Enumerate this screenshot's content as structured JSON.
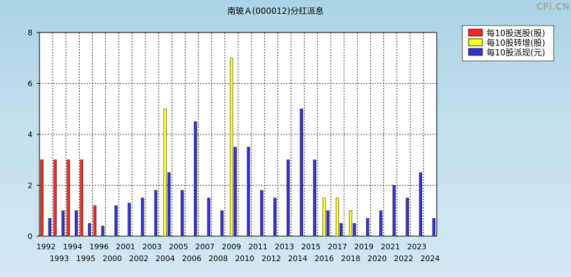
{
  "chart_data": {
    "type": "bar",
    "title": "南玻Ａ(000012)分红派息",
    "brand": "CFi.CN",
    "categories": [
      "1992",
      "1993",
      "1994",
      "1995",
      "1996",
      "2000",
      "2001",
      "2002",
      "2003",
      "2004",
      "2005",
      "2006",
      "2007",
      "2008",
      "2009",
      "2010",
      "2011",
      "2012",
      "2013",
      "2014",
      "2015",
      "2016",
      "2017",
      "2018",
      "2019",
      "2020",
      "2021",
      "2022",
      "2023",
      "2024"
    ],
    "ylim": [
      0,
      8
    ],
    "yticks": [
      0,
      2,
      4,
      6,
      8
    ],
    "grid": true,
    "legend_position": "top-right",
    "series": [
      {
        "name": "每10股送股(股)",
        "color": "#ff2222",
        "values": [
          3,
          3,
          3,
          3,
          1.2,
          0,
          0,
          0,
          0,
          0,
          0,
          0,
          0,
          0,
          0,
          0,
          0,
          0,
          0,
          0,
          0,
          0,
          0,
          0,
          0,
          0,
          0,
          0,
          0,
          0
        ]
      },
      {
        "name": "每10股转增(股)",
        "color": "#ffff22",
        "values": [
          0,
          0,
          0,
          0,
          0,
          0,
          0,
          0,
          0,
          5,
          0,
          0,
          0,
          0,
          7,
          0,
          0,
          0,
          0,
          0,
          0,
          1.5,
          1.5,
          1,
          0,
          0,
          0,
          0,
          0,
          0
        ]
      },
      {
        "name": "每10股派现(元)",
        "color": "#3333cc",
        "values": [
          0.7,
          1,
          1,
          0.5,
          0.4,
          1.2,
          1.3,
          1.5,
          1.8,
          2.5,
          1.8,
          4.5,
          1.5,
          1,
          3.5,
          3.5,
          1.8,
          1.5,
          3,
          5,
          3,
          1,
          0.5,
          0.5,
          0.7,
          1,
          2,
          1.5,
          2.5,
          0.7
        ]
      }
    ]
  }
}
